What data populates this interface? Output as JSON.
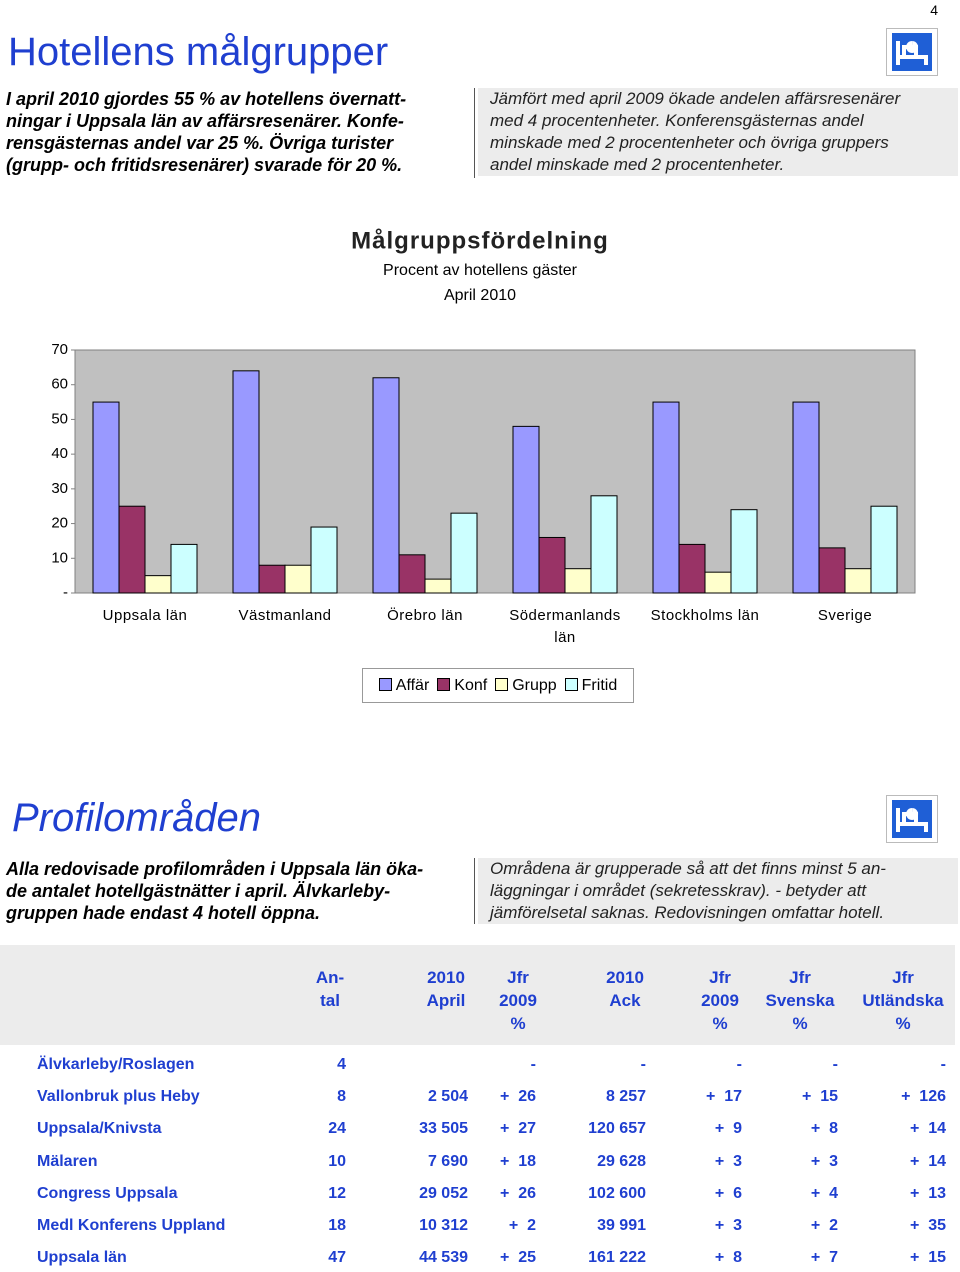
{
  "page_number": "4",
  "section1": {
    "title": "Hotellens målgrupper",
    "left": [
      "I april 2010 gjordes 55 % av hotellens övernatt-",
      "ningar i Uppsala län av affärsresenärer. Konfe-",
      "rensgästernas andel var 25 %. Övriga turister",
      "(grupp- och fritidsresenärer) svarade för 20 %."
    ],
    "right": [
      "Jämfört med april 2009 ökade andelen affärsresenärer",
      "med 4 procentenheter. Konferensgästernas andel",
      "minskade med 2 procentenheter och övriga gruppers",
      "andel minskade med 2 procentenheter."
    ]
  },
  "chart_data": {
    "type": "bar",
    "title": "Målgruppsfördelning",
    "subtitle": "Procent av hotellens gäster",
    "period": "April 2010",
    "categories": [
      "Uppsala län",
      "Västmanland",
      "Örebro län",
      "Södermanlands län",
      "Stockholms län",
      "Sverige"
    ],
    "series": [
      {
        "name": "Affär",
        "color": "#9999ff",
        "values": [
          55,
          64,
          62,
          48,
          55,
          55
        ]
      },
      {
        "name": "Konf",
        "color": "#993366",
        "values": [
          25,
          8,
          11,
          16,
          14,
          13
        ]
      },
      {
        "name": "Grupp",
        "color": "#ffffcc",
        "values": [
          5,
          8,
          4,
          7,
          6,
          7
        ]
      },
      {
        "name": "Fritid",
        "color": "#ccffff",
        "values": [
          14,
          19,
          23,
          28,
          24,
          25
        ]
      }
    ],
    "ylim": [
      0,
      70
    ],
    "yticks": [
      {
        "value": 0,
        "label": "-"
      },
      10,
      20,
      30,
      40,
      50,
      60,
      70
    ]
  },
  "section2": {
    "title": "Profilområden",
    "left": [
      "Alla redovisade profilområden i Uppsala län öka-",
      "de antalet hotellgästnätter i april. Älvkarleby-",
      "gruppen hade endast 4 hotell öppna."
    ],
    "right": [
      "Områdena är grupperade så att det finns minst 5 an-",
      "läggningar i området (sekretesskrav). - betyder att",
      "jämförelsetal saknas. Redovisningen omfattar hotell."
    ]
  },
  "table": {
    "header": [
      [
        "An-",
        "tal"
      ],
      [
        "2010",
        "April"
      ],
      [
        "Jfr",
        "2009",
        "%"
      ],
      [
        "2010",
        "Ack"
      ],
      [
        "Jfr",
        "2009",
        "%"
      ],
      [
        "Jfr",
        "Svenska",
        "%"
      ],
      [
        "Jfr",
        "Utländska",
        "%"
      ]
    ],
    "rows": [
      [
        "Älvkarleby/Roslagen",
        "4",
        "",
        "-",
        "-",
        "-",
        "-",
        "-"
      ],
      [
        "Vallonbruk plus Heby",
        "8",
        "2 504",
        "+  26",
        "8 257",
        "+  17",
        "+  15",
        "+  126"
      ],
      [
        "Uppsala/Knivsta",
        "24",
        "33 505",
        "+  27",
        "120 657",
        "+  9",
        "+  8",
        "+  14"
      ],
      [
        "Mälaren",
        "10",
        "7 690",
        "+  18",
        "29 628",
        "+  3",
        "+  3",
        "+  14"
      ],
      [
        "Congress Uppsala",
        "12",
        "29 052",
        "+  26",
        "102 600",
        "+  6",
        "+  4",
        "+  13"
      ],
      [
        "Medl Konferens Uppland",
        "18",
        "10 312",
        "+  2",
        "39 991",
        "+  3",
        "+  2",
        "+  35"
      ],
      [
        "Uppsala län",
        "47",
        "44 539",
        "+  25",
        "161 222",
        "+  8",
        "+  7",
        "+  15"
      ]
    ]
  }
}
